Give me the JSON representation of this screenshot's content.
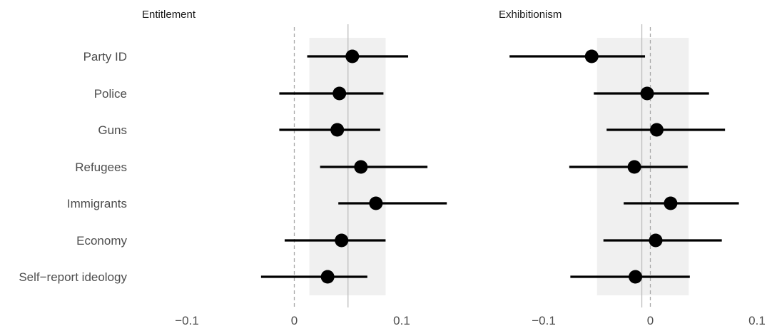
{
  "chart_data": [
    {
      "type": "scatter",
      "title": "Entitlement",
      "xlim": [
        -0.1,
        0.1
      ],
      "x_ticks": [
        -0.1,
        0,
        0.1
      ],
      "x_tick_labels": [
        "−0.1",
        "0",
        "0.1"
      ],
      "reference_line": 0,
      "mean_line": 0.05,
      "shaded_band": [
        0.014,
        0.085
      ],
      "categories": [
        "Party ID",
        "Police",
        "Guns",
        "Refugees",
        "Immigrants",
        "Economy",
        "Self−report ideology"
      ],
      "estimates": [
        0.054,
        0.042,
        0.04,
        0.062,
        0.076,
        0.044,
        0.031
      ],
      "ci_low": [
        0.012,
        -0.014,
        -0.014,
        0.024,
        0.041,
        -0.009,
        -0.031
      ],
      "ci_high": [
        0.106,
        0.083,
        0.08,
        0.124,
        0.142,
        0.085,
        0.068
      ],
      "grid": false
    },
    {
      "type": "scatter",
      "title": "Exhibitionism",
      "xlim": [
        -0.1,
        0.1
      ],
      "x_ticks": [
        -0.1,
        0,
        0.1
      ],
      "x_tick_labels": [
        "−0.1",
        "0",
        "0.1"
      ],
      "reference_line": 0,
      "mean_line": -0.008,
      "shaded_band": [
        -0.05,
        0.036
      ],
      "categories": [
        "Party ID",
        "Police",
        "Guns",
        "Refugees",
        "Immigrants",
        "Economy",
        "Self−report ideology"
      ],
      "estimates": [
        -0.055,
        -0.003,
        0.006,
        -0.015,
        0.019,
        0.005,
        -0.014
      ],
      "ci_low": [
        -0.132,
        -0.053,
        -0.041,
        -0.076,
        -0.025,
        -0.044,
        -0.075
      ],
      "ci_high": [
        -0.005,
        0.055,
        0.07,
        0.035,
        0.083,
        0.067,
        0.037
      ],
      "grid": false
    }
  ],
  "colors": {
    "point": "#000000",
    "band": "#f0f0f0",
    "mean_line": "#bdbdbd",
    "zero_line": "#a8a8a8",
    "text": "#4d4d4d"
  }
}
